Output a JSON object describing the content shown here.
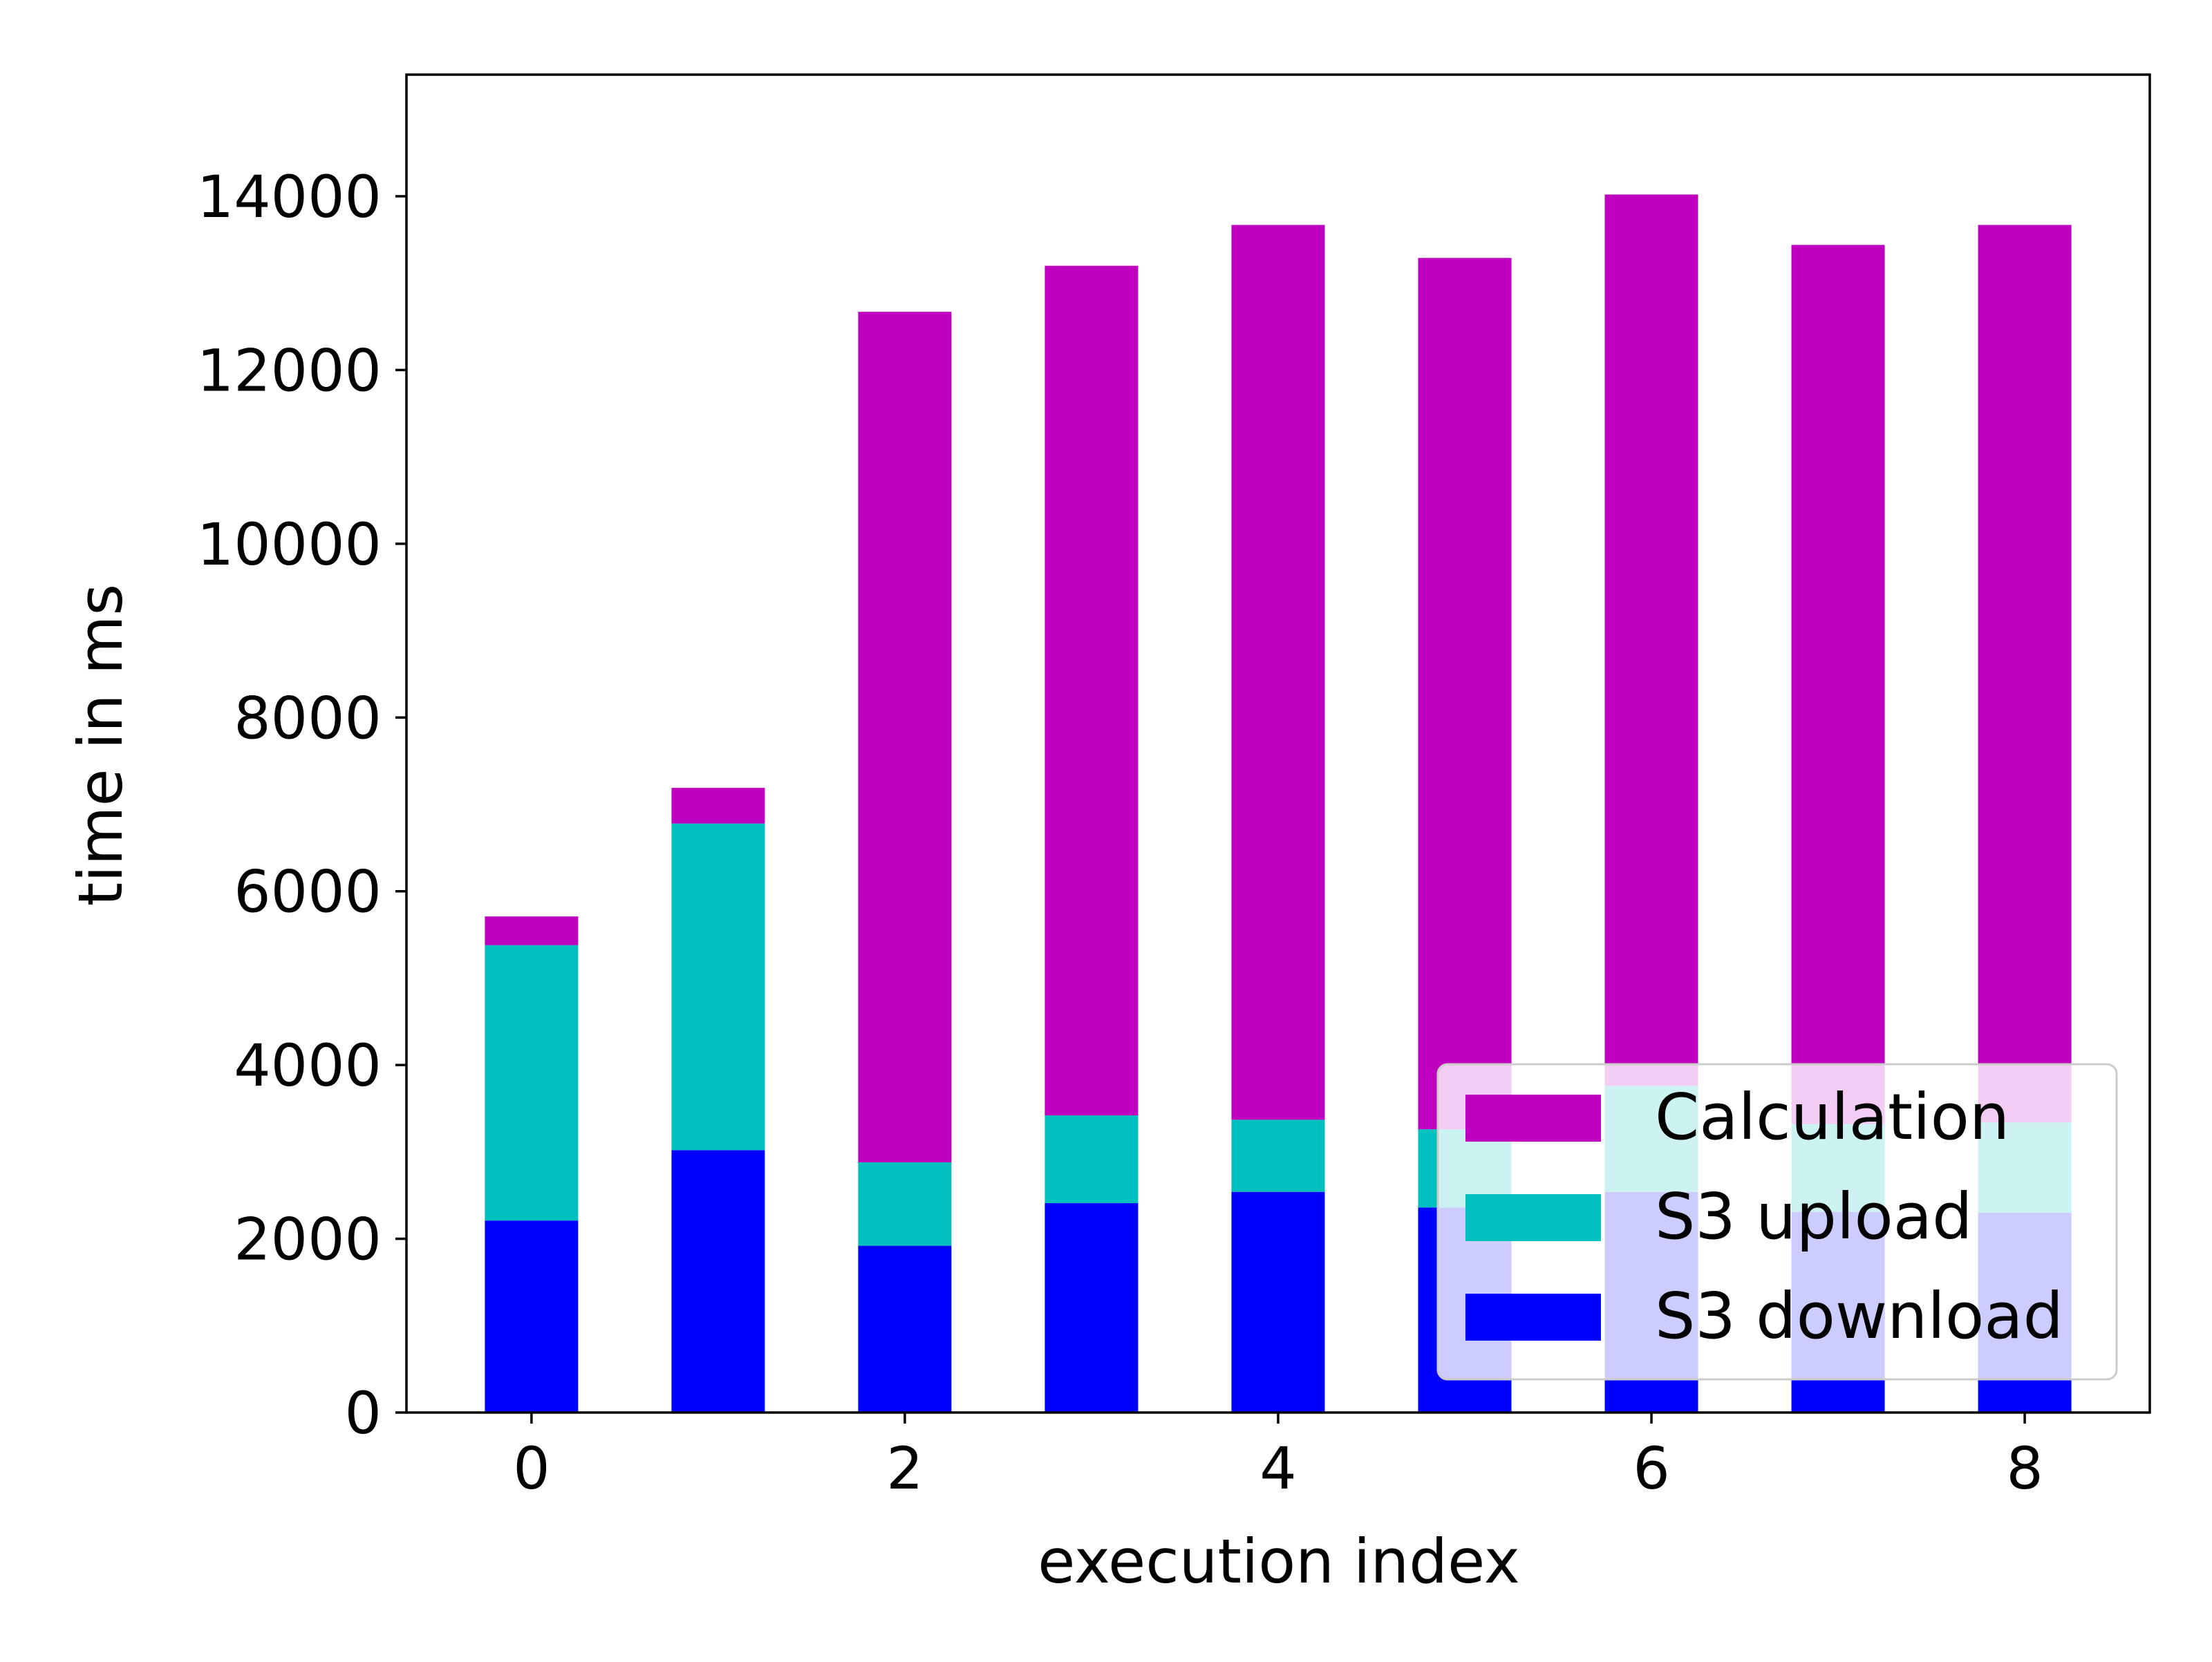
{
  "chart_data": {
    "type": "bar",
    "stacked": true,
    "title": "",
    "xlabel": "execution index",
    "ylabel": "time in ms",
    "categories": [
      0,
      1,
      2,
      3,
      4,
      5,
      6,
      7,
      8
    ],
    "x_ticks": [
      "0",
      "2",
      "4",
      "6",
      "8"
    ],
    "y_ticks": [
      "0",
      "2000",
      "4000",
      "6000",
      "8000",
      "10000",
      "12000",
      "14000"
    ],
    "xlim": [
      -0.67,
      8.67
    ],
    "ylim": [
      0,
      15400
    ],
    "grid": false,
    "legend_position": "lower-right",
    "series": [
      {
        "name": "S3 download",
        "color": "#0000ff",
        "values": [
          2210,
          3020,
          1920,
          2410,
          2540,
          2360,
          2540,
          2310,
          2300
        ]
      },
      {
        "name": "S3 upload",
        "color": "#00bfbf",
        "values": [
          3170,
          3760,
          960,
          1010,
          830,
          900,
          1220,
          1010,
          1040
        ]
      },
      {
        "name": "Calculation",
        "color": "#bf00bf",
        "values": [
          330,
          410,
          9790,
          9780,
          10300,
          10030,
          10260,
          10120,
          10330
        ]
      }
    ],
    "legend_order": [
      "Calculation",
      "S3 upload",
      "S3 download"
    ]
  }
}
